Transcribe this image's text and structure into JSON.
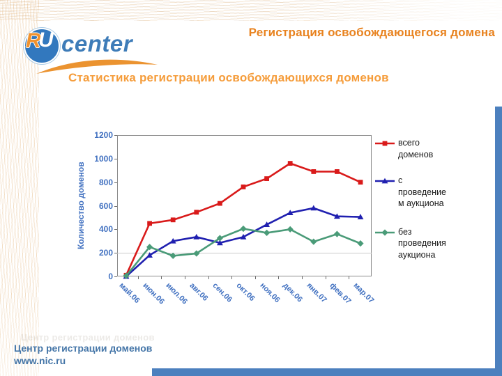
{
  "slide": {
    "title": "Регистрация освобождающегося домена",
    "subtitle": "Статистика регистрации освобождающихся доменов",
    "footer_line1": "Центр регистрации доменов",
    "footer_line2": "www.nic.ru"
  },
  "logo": {
    "r": "R",
    "u": "U",
    "text": "center"
  },
  "colors": {
    "title_orange": "#E8821E",
    "subtitle_orange": "#F59C3A",
    "logo_blue": "#3278BE",
    "swoosh_orange": "#EB9330",
    "footer_blue": "#4576A8",
    "accent_bar_blue": "#4C80BE",
    "axis_label_blue": "#4070C0",
    "series_red": "#D91A1A",
    "series_blue": "#2020B0",
    "series_green": "#4A9B78"
  },
  "chart_data": {
    "type": "line",
    "title": "",
    "xlabel": "",
    "ylabel": "Количество доменов",
    "ylim": [
      0,
      1200
    ],
    "yticks": [
      0,
      200,
      400,
      600,
      800,
      1000,
      1200
    ],
    "grid": "single horizontal gridline at 200; plot area outlined",
    "legend_position": "right",
    "categories": [
      "май.06",
      "июн.06",
      "июл.06",
      "авг.06",
      "сен.06",
      "окт.06",
      "ноя.06",
      "дек.06",
      "янв.07",
      "фев.07",
      "мар.07"
    ],
    "series": [
      {
        "name": "всего доменов",
        "legend_lines": [
          "всего",
          "доменов"
        ],
        "color": "#D91A1A",
        "marker": "square",
        "values": [
          10,
          450,
          480,
          545,
          620,
          760,
          830,
          960,
          890,
          890,
          800
        ]
      },
      {
        "name": "с проведением аукциона",
        "legend_lines": [
          "с",
          "проведение",
          "м аукциона"
        ],
        "color": "#2020B0",
        "marker": "triangle",
        "values": [
          0,
          180,
          300,
          335,
          285,
          335,
          440,
          540,
          580,
          510,
          505
        ]
      },
      {
        "name": "без проведения аукциона",
        "legend_lines": [
          "без",
          "проведения",
          "аукциона"
        ],
        "color": "#4A9B78",
        "marker": "diamond",
        "values": [
          5,
          250,
          175,
          195,
          325,
          405,
          370,
          400,
          295,
          360,
          280
        ]
      }
    ]
  }
}
